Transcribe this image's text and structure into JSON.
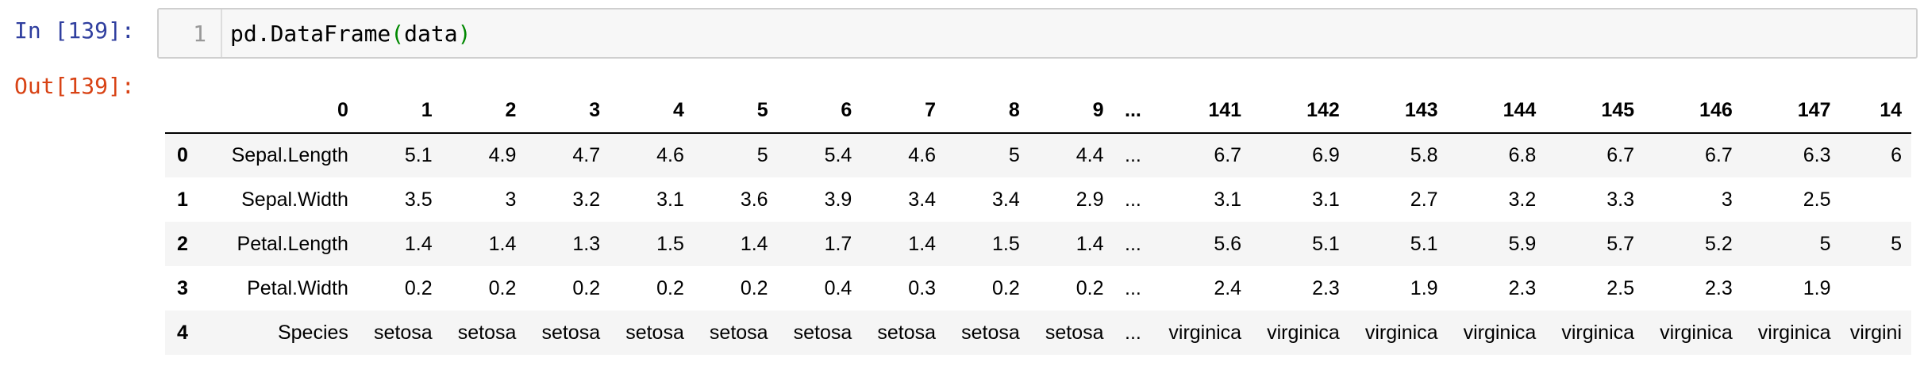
{
  "cell": {
    "in_prompt": "In [139]:",
    "out_prompt": "Out[139]:",
    "line_number": "1",
    "code_name": "pd.DataFrame",
    "code_open_paren": "(",
    "code_arg": "data",
    "code_close_paren": ")"
  },
  "table": {
    "corner": "",
    "columns": [
      "0",
      "1",
      "2",
      "3",
      "4",
      "5",
      "6",
      "7",
      "8",
      "9",
      "...",
      "141",
      "142",
      "143",
      "144",
      "145",
      "146",
      "147",
      "14"
    ],
    "rows": [
      {
        "index": "0",
        "cells": [
          "Sepal.Length",
          "5.1",
          "4.9",
          "4.7",
          "4.6",
          "5",
          "5.4",
          "4.6",
          "5",
          "4.4",
          "...",
          "6.7",
          "6.9",
          "5.8",
          "6.8",
          "6.7",
          "6.7",
          "6.3",
          "6"
        ]
      },
      {
        "index": "1",
        "cells": [
          "Sepal.Width",
          "3.5",
          "3",
          "3.2",
          "3.1",
          "3.6",
          "3.9",
          "3.4",
          "3.4",
          "2.9",
          "...",
          "3.1",
          "3.1",
          "2.7",
          "3.2",
          "3.3",
          "3",
          "2.5",
          ""
        ]
      },
      {
        "index": "2",
        "cells": [
          "Petal.Length",
          "1.4",
          "1.4",
          "1.3",
          "1.5",
          "1.4",
          "1.7",
          "1.4",
          "1.5",
          "1.4",
          "...",
          "5.6",
          "5.1",
          "5.1",
          "5.9",
          "5.7",
          "5.2",
          "5",
          "5"
        ]
      },
      {
        "index": "3",
        "cells": [
          "Petal.Width",
          "0.2",
          "0.2",
          "0.2",
          "0.2",
          "0.2",
          "0.4",
          "0.3",
          "0.2",
          "0.2",
          "...",
          "2.4",
          "2.3",
          "1.9",
          "2.3",
          "2.5",
          "2.3",
          "1.9",
          ""
        ]
      },
      {
        "index": "4",
        "cells": [
          "Species",
          "setosa",
          "setosa",
          "setosa",
          "setosa",
          "setosa",
          "setosa",
          "setosa",
          "setosa",
          "setosa",
          "...",
          "virginica",
          "virginica",
          "virginica",
          "virginica",
          "virginica",
          "virginica",
          "virginica",
          "virgini"
        ]
      }
    ]
  }
}
